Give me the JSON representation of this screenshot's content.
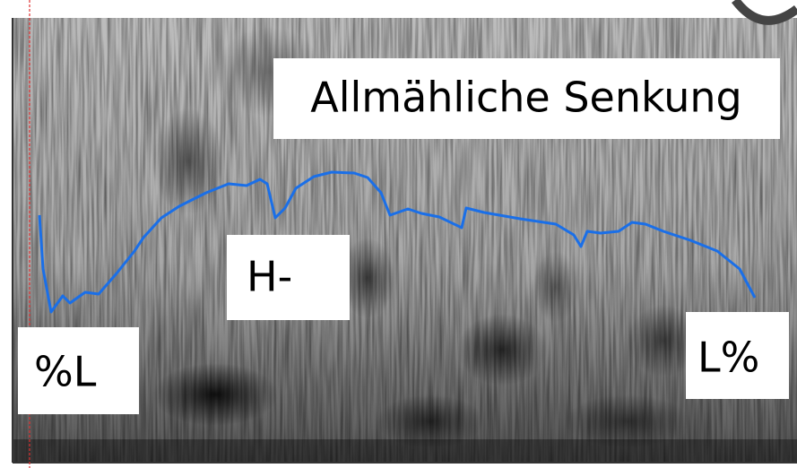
{
  "annotations": {
    "title": "Allmähliche Senkung",
    "high": "H-",
    "start": "%L",
    "end": "L%"
  }
}
